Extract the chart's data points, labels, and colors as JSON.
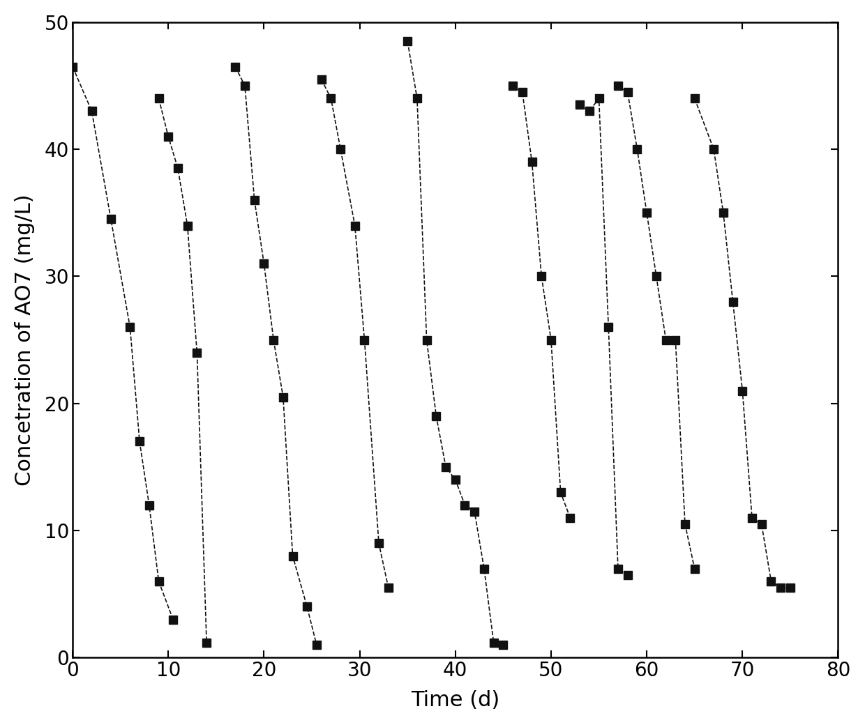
{
  "title": "",
  "xlabel": "Time (d)",
  "ylabel": "Concetration of AO7 (mg/L)",
  "xlim": [
    0,
    80
  ],
  "ylim": [
    0,
    50
  ],
  "xticks": [
    0,
    10,
    20,
    30,
    40,
    50,
    60,
    70,
    80
  ],
  "yticks": [
    0,
    10,
    20,
    30,
    40,
    50
  ],
  "series": [
    {
      "x": [
        0,
        2,
        4,
        6,
        7,
        8,
        9,
        10.5
      ],
      "y": [
        46.5,
        43,
        34.5,
        26,
        17,
        12,
        6,
        3
      ]
    },
    {
      "x": [
        9,
        10,
        11,
        12,
        13,
        14
      ],
      "y": [
        44,
        41,
        38.5,
        34,
        24,
        1.2
      ]
    },
    {
      "x": [
        17,
        18,
        19,
        20,
        21,
        22,
        23,
        24.5,
        25.5
      ],
      "y": [
        46.5,
        45,
        36,
        31,
        25,
        20.5,
        8,
        4,
        1
      ]
    },
    {
      "x": [
        26,
        27,
        28,
        29.5,
        30.5,
        32,
        33
      ],
      "y": [
        45.5,
        44,
        40,
        34,
        25,
        9,
        5.5
      ]
    },
    {
      "x": [
        35,
        36,
        37,
        38,
        39,
        40,
        41,
        42,
        43,
        44,
        45
      ],
      "y": [
        48.5,
        44,
        25,
        19,
        15,
        14,
        12,
        11.5,
        7,
        1.2,
        1.0
      ]
    },
    {
      "x": [
        46,
        47,
        48,
        49,
        50,
        51,
        52
      ],
      "y": [
        45,
        44.5,
        39,
        30,
        25,
        13,
        11
      ]
    },
    {
      "x": [
        53,
        54,
        55,
        56,
        57,
        58
      ],
      "y": [
        43.5,
        43,
        44,
        26,
        7,
        6.5
      ]
    },
    {
      "x": [
        57,
        58,
        59,
        60,
        61,
        62,
        63,
        64,
        65
      ],
      "y": [
        45,
        44.5,
        40,
        35,
        30,
        25,
        25,
        10.5,
        7
      ]
    },
    {
      "x": [
        65,
        67,
        68,
        69,
        70,
        71,
        72,
        73,
        74,
        75
      ],
      "y": [
        44,
        40,
        35,
        28,
        21,
        11,
        10.5,
        6,
        5.5,
        5.5
      ]
    }
  ],
  "marker": "s",
  "marker_size": 9,
  "marker_color": "#111111",
  "line_color": "#111111",
  "line_style": "--",
  "line_width": 1.2,
  "tick_fontsize": 20,
  "label_fontsize": 22,
  "fig_width": 12.4,
  "fig_height": 10.4,
  "dpi": 100
}
